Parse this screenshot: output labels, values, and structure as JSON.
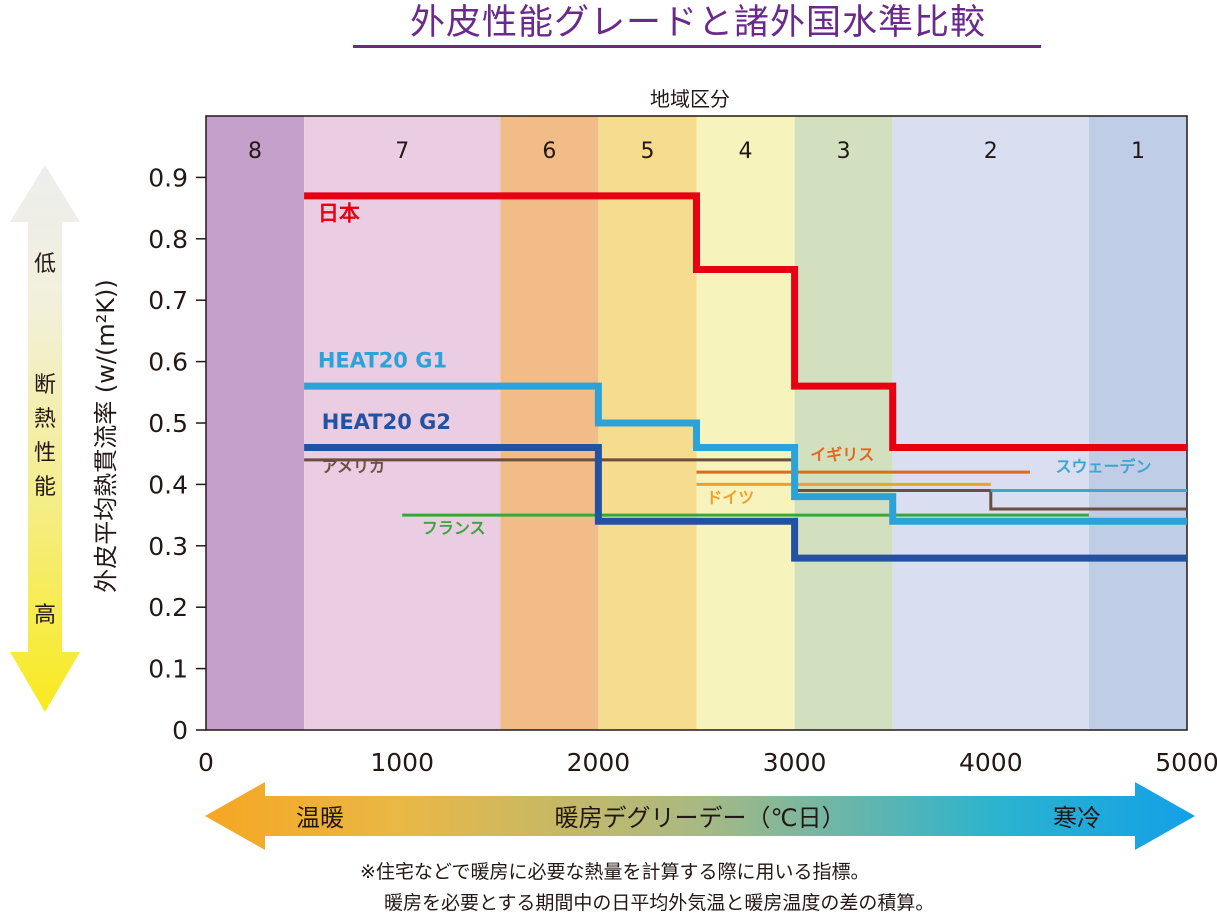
{
  "title": "外皮性能グレードと諸外国水準比較",
  "chart_data": {
    "type": "line",
    "top_axis_label": "地域区分",
    "ylabel": "外皮平均熱貫流率 (w/(m²K))",
    "xlabel": "暖房デグリーデー（℃日）",
    "xlabel_left": "温暖",
    "xlabel_right": "寒冷",
    "left_arrow_top": "低",
    "left_arrow_middle": "断熱性能",
    "left_arrow_bottom": "高",
    "xlim": [
      0,
      5000
    ],
    "ylim": [
      0,
      1.0
    ],
    "x_ticks": [
      "0",
      "1000",
      "2000",
      "3000",
      "4000",
      "5000"
    ],
    "y_ticks": [
      "0",
      "0.1",
      "0.2",
      "0.3",
      "0.4",
      "0.5",
      "0.6",
      "0.7",
      "0.8",
      "0.9"
    ],
    "regions": [
      {
        "label": "8",
        "x0": 0,
        "x1": 500,
        "color": "#c5a0ca"
      },
      {
        "label": "7",
        "x0": 500,
        "x1": 1500,
        "color": "#ebcde3"
      },
      {
        "label": "6",
        "x0": 1500,
        "x1": 2000,
        "color": "#f2bc88"
      },
      {
        "label": "5",
        "x0": 2000,
        "x1": 2500,
        "color": "#f6dc8e"
      },
      {
        "label": "4",
        "x0": 2500,
        "x1": 3000,
        "color": "#f7f3bd"
      },
      {
        "label": "3",
        "x0": 3000,
        "x1": 3500,
        "color": "#d3e0c0"
      },
      {
        "label": "2",
        "x0": 3500,
        "x1": 4500,
        "color": "#d9def0"
      },
      {
        "label": "1",
        "x0": 4500,
        "x1": 5000,
        "color": "#bfcee6"
      }
    ],
    "series": [
      {
        "name": "日本",
        "color": "#e60012",
        "width": 7,
        "x": [
          500,
          2500,
          2500,
          3000,
          3000,
          3500,
          3500,
          5000
        ],
        "y": [
          0.87,
          0.87,
          0.75,
          0.75,
          0.56,
          0.56,
          0.46,
          0.46
        ],
        "label_x": 570,
        "label_y": 0.83
      },
      {
        "name": "HEAT20 G1",
        "color": "#2ca2d8",
        "width": 7,
        "x": [
          500,
          2000,
          2000,
          2500,
          2500,
          3000,
          3000,
          3500,
          3500,
          5000
        ],
        "y": [
          0.56,
          0.56,
          0.5,
          0.5,
          0.46,
          0.46,
          0.38,
          0.38,
          0.34,
          0.34
        ],
        "label_x": 570,
        "label_y": 0.59
      },
      {
        "name": "HEAT20 G2",
        "color": "#2452a2",
        "width": 7,
        "x": [
          500,
          2000,
          2000,
          3000,
          3000,
          5000
        ],
        "y": [
          0.46,
          0.46,
          0.34,
          0.34,
          0.28,
          0.28
        ],
        "label_x": 590,
        "label_y": 0.49
      },
      {
        "name": "アメリカ",
        "color": "#6b4e3e",
        "width": 3,
        "x": [
          500,
          3000,
          3000,
          4000,
          4000,
          5000
        ],
        "y": [
          0.44,
          0.44,
          0.39,
          0.39,
          0.36,
          0.36
        ],
        "label_x": 590,
        "label_y": 0.42
      },
      {
        "name": "イギリス",
        "color": "#e06a1b",
        "width": 3,
        "x": [
          2500,
          4200
        ],
        "y": [
          0.42,
          0.42
        ],
        "label_x": 3080,
        "label_y": 0.44
      },
      {
        "name": "ドイツ",
        "color": "#f0a02a",
        "width": 3,
        "x": [
          2500,
          4000
        ],
        "y": [
          0.4,
          0.4
        ],
        "label_x": 2550,
        "label_y": 0.37
      },
      {
        "name": "スウェーデン",
        "color": "#3aa7d0",
        "width": 3,
        "x": [
          4000,
          5000
        ],
        "y": [
          0.39,
          0.39
        ],
        "label_x": 4330,
        "label_y": 0.42
      },
      {
        "name": "フランス",
        "color": "#3aa53a",
        "width": 3,
        "x": [
          1000,
          4500
        ],
        "y": [
          0.35,
          0.35
        ],
        "label_x": 1100,
        "label_y": 0.32
      }
    ]
  },
  "notes": [
    "※住宅などで暖房に必要な熱量を計算する際に用いる指標。",
    "暖房を必要とする期間中の日平均外気温と暖房温度の差の積算。"
  ]
}
